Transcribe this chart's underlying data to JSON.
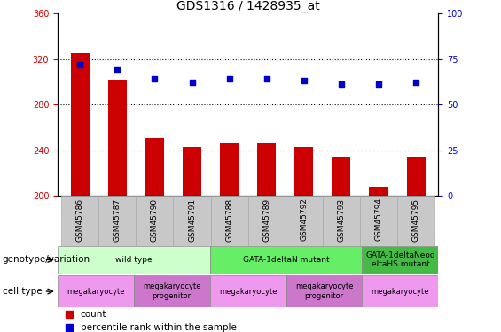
{
  "title": "GDS1316 / 1428935_at",
  "samples": [
    "GSM45786",
    "GSM45787",
    "GSM45790",
    "GSM45791",
    "GSM45788",
    "GSM45789",
    "GSM45792",
    "GSM45793",
    "GSM45794",
    "GSM45795"
  ],
  "bar_values": [
    325,
    302,
    251,
    243,
    247,
    247,
    243,
    234,
    208,
    234
  ],
  "scatter_values": [
    72,
    69,
    64,
    62,
    64,
    64,
    63,
    61,
    61,
    62
  ],
  "ylim_left": [
    200,
    360
  ],
  "ylim_right": [
    0,
    100
  ],
  "yticks_left": [
    200,
    240,
    280,
    320,
    360
  ],
  "yticks_right": [
    0,
    25,
    50,
    75,
    100
  ],
  "bar_color": "#cc0000",
  "scatter_color": "#0000cc",
  "genotype_groups": [
    {
      "label": "wild type",
      "span": [
        0,
        4
      ],
      "color": "#ccffcc"
    },
    {
      "label": "GATA-1deltaN mutant",
      "span": [
        4,
        8
      ],
      "color": "#66ee66"
    },
    {
      "label": "GATA-1deltaNeod\neltaHS mutant",
      "span": [
        8,
        10
      ],
      "color": "#44bb44"
    }
  ],
  "celltype_groups": [
    {
      "label": "megakaryocyte",
      "span": [
        0,
        2
      ],
      "color": "#ee99ee"
    },
    {
      "label": "megakaryocyte\nprogenitor",
      "span": [
        2,
        4
      ],
      "color": "#cc77cc"
    },
    {
      "label": "megakaryocyte",
      "span": [
        4,
        6
      ],
      "color": "#ee99ee"
    },
    {
      "label": "megakaryocyte\nprogenitor",
      "span": [
        6,
        8
      ],
      "color": "#cc77cc"
    },
    {
      "label": "megakaryocyte",
      "span": [
        8,
        10
      ],
      "color": "#ee99ee"
    }
  ],
  "legend_count_color": "#cc0000",
  "legend_pct_color": "#0000cc",
  "row_label_genotype": "genotype/variation",
  "row_label_celltype": "cell type",
  "tick_label_color_left": "#cc0000",
  "tick_label_color_right": "#0000cc",
  "bar_width": 0.5,
  "tick_fontsize": 7,
  "title_fontsize": 10,
  "gridline_ticks": [
    240,
    280,
    320
  ],
  "label_bg_color": "#c8c8c8"
}
